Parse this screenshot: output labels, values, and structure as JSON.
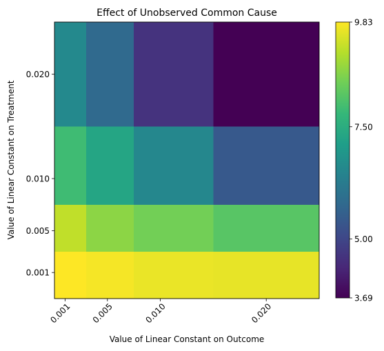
{
  "chart_data": {
    "type": "heatmap",
    "title": "Effect of Unobserved Common Cause",
    "xlabel": "Value of Linear Constant on Outcome",
    "ylabel": "Value of Linear Constant on Treatment",
    "x_values": [
      0.001,
      0.005,
      0.01,
      0.02
    ],
    "x_tick_labels": [
      "0.001",
      "0.005",
      "0.010",
      "0.020"
    ],
    "y_values": [
      0.001,
      0.005,
      0.01,
      0.02
    ],
    "y_tick_labels": [
      "0.001",
      "0.005",
      "0.010",
      "0.020"
    ],
    "cell_edges_x": [
      0.0,
      0.003,
      0.0075,
      0.015,
      0.025
    ],
    "cell_edges_y": [
      -0.0015,
      0.003,
      0.0075,
      0.015,
      0.025
    ],
    "xlim": [
      0.0,
      0.025
    ],
    "ylim": [
      -0.0015,
      0.025
    ],
    "values": [
      [
        9.83,
        9.75,
        9.65,
        9.62
      ],
      [
        9.25,
        8.75,
        8.5,
        8.2
      ],
      [
        7.9,
        7.3,
        6.55,
        5.4
      ],
      [
        6.6,
        5.8,
        4.6,
        3.69
      ]
    ],
    "colormap": "viridis",
    "colorbar": {
      "min": 3.69,
      "max": 9.83,
      "ticks": [
        3.69,
        5.0,
        7.5,
        9.83
      ],
      "tick_labels": [
        "3.69",
        "5.00",
        "7.50",
        "9.83"
      ]
    },
    "grid": false
  }
}
